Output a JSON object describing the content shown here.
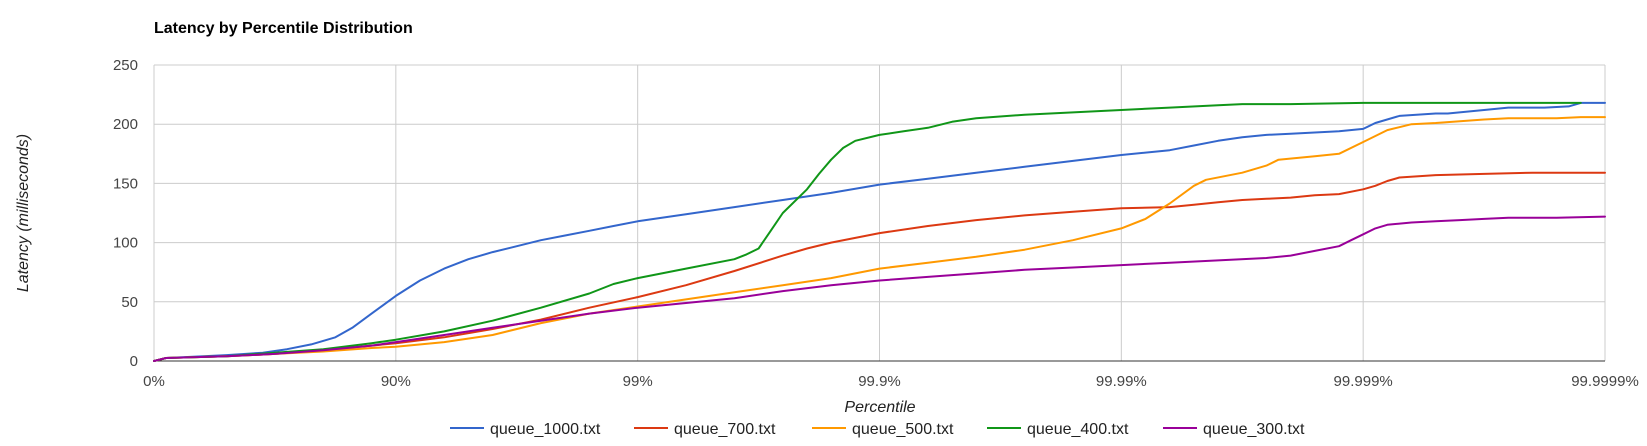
{
  "chart_data": {
    "type": "line",
    "title": "Latency by Percentile Distribution",
    "xlabel": "Percentile",
    "ylabel": "Latency (milliseconds)",
    "x_scale": "percentile-log",
    "x_ticks": [
      {
        "value": 0,
        "label": "0%"
      },
      {
        "value": 1,
        "label": "90%"
      },
      {
        "value": 2,
        "label": "99%"
      },
      {
        "value": 3,
        "label": "99.9%"
      },
      {
        "value": 4,
        "label": "99.99%"
      },
      {
        "value": 5,
        "label": "99.999%"
      },
      {
        "value": 6,
        "label": "99.9999%"
      }
    ],
    "y_ticks": [
      0,
      50,
      100,
      150,
      200,
      250
    ],
    "ylim": [
      0,
      250
    ],
    "xlim": [
      0,
      6
    ],
    "grid": true,
    "legend_position": "bottom",
    "series": [
      {
        "name": "queue_1000.txt",
        "color": "#3366cc",
        "points": [
          [
            0,
            0
          ],
          [
            0.05,
            2.5
          ],
          [
            0.15,
            3.5
          ],
          [
            0.3,
            5
          ],
          [
            0.45,
            7
          ],
          [
            0.55,
            10
          ],
          [
            0.65,
            14
          ],
          [
            0.75,
            20
          ],
          [
            0.82,
            28
          ],
          [
            0.9,
            40
          ],
          [
            1,
            55
          ],
          [
            1.1,
            68
          ],
          [
            1.2,
            78
          ],
          [
            1.3,
            86
          ],
          [
            1.4,
            92
          ],
          [
            1.5,
            97
          ],
          [
            1.6,
            102
          ],
          [
            1.7,
            106
          ],
          [
            1.8,
            110
          ],
          [
            1.9,
            114
          ],
          [
            2,
            118
          ],
          [
            2.2,
            124
          ],
          [
            2.4,
            130
          ],
          [
            2.6,
            136
          ],
          [
            2.8,
            142
          ],
          [
            3,
            149
          ],
          [
            3.2,
            154
          ],
          [
            3.4,
            159
          ],
          [
            3.6,
            164
          ],
          [
            3.8,
            169
          ],
          [
            4,
            174
          ],
          [
            4.2,
            178
          ],
          [
            4.3,
            182
          ],
          [
            4.4,
            186
          ],
          [
            4.5,
            189
          ],
          [
            4.6,
            191
          ],
          [
            4.7,
            192
          ],
          [
            4.8,
            193
          ],
          [
            4.9,
            194
          ],
          [
            5,
            196
          ],
          [
            5.05,
            201
          ],
          [
            5.15,
            207
          ],
          [
            5.3,
            209
          ],
          [
            5.35,
            209
          ],
          [
            5.5,
            212
          ],
          [
            5.6,
            214
          ],
          [
            5.75,
            214
          ],
          [
            5.85,
            215
          ],
          [
            5.9,
            218
          ],
          [
            6,
            218
          ]
        ]
      },
      {
        "name": "queue_700.txt",
        "color": "#dc3912",
        "points": [
          [
            0,
            0
          ],
          [
            0.05,
            2.5
          ],
          [
            0.3,
            4
          ],
          [
            0.5,
            6
          ],
          [
            0.7,
            9
          ],
          [
            0.9,
            13
          ],
          [
            1,
            15
          ],
          [
            1.2,
            20
          ],
          [
            1.4,
            27
          ],
          [
            1.6,
            35
          ],
          [
            1.8,
            45
          ],
          [
            2,
            54
          ],
          [
            2.2,
            64
          ],
          [
            2.4,
            76
          ],
          [
            2.6,
            89
          ],
          [
            2.7,
            95
          ],
          [
            2.8,
            100
          ],
          [
            3,
            108
          ],
          [
            3.2,
            114
          ],
          [
            3.4,
            119
          ],
          [
            3.6,
            123
          ],
          [
            3.8,
            126
          ],
          [
            4,
            129
          ],
          [
            4.2,
            130
          ],
          [
            4.3,
            132
          ],
          [
            4.4,
            134
          ],
          [
            4.5,
            136
          ],
          [
            4.6,
            137
          ],
          [
            4.7,
            138
          ],
          [
            4.8,
            140
          ],
          [
            4.9,
            141
          ],
          [
            5,
            145
          ],
          [
            5.05,
            148
          ],
          [
            5.1,
            152
          ],
          [
            5.15,
            155
          ],
          [
            5.3,
            157
          ],
          [
            5.5,
            158
          ],
          [
            5.7,
            159
          ],
          [
            6,
            159
          ]
        ]
      },
      {
        "name": "queue_500.txt",
        "color": "#ff9900",
        "points": [
          [
            0,
            0
          ],
          [
            0.05,
            2.5
          ],
          [
            0.3,
            4
          ],
          [
            0.5,
            6
          ],
          [
            0.7,
            8
          ],
          [
            0.9,
            11
          ],
          [
            1,
            12
          ],
          [
            1.2,
            16
          ],
          [
            1.4,
            22
          ],
          [
            1.6,
            32
          ],
          [
            1.8,
            40
          ],
          [
            2,
            46
          ],
          [
            2.2,
            52
          ],
          [
            2.4,
            58
          ],
          [
            2.6,
            64
          ],
          [
            2.8,
            70
          ],
          [
            3,
            78
          ],
          [
            3.2,
            83
          ],
          [
            3.4,
            88
          ],
          [
            3.6,
            94
          ],
          [
            3.8,
            102
          ],
          [
            4,
            112
          ],
          [
            4.1,
            120
          ],
          [
            4.2,
            133
          ],
          [
            4.3,
            148
          ],
          [
            4.35,
            153
          ],
          [
            4.5,
            159
          ],
          [
            4.6,
            165
          ],
          [
            4.65,
            170
          ],
          [
            4.8,
            173
          ],
          [
            4.9,
            175
          ],
          [
            5,
            185
          ],
          [
            5.1,
            195
          ],
          [
            5.2,
            200
          ],
          [
            5.3,
            201
          ],
          [
            5.5,
            204
          ],
          [
            5.6,
            205
          ],
          [
            5.8,
            205
          ],
          [
            5.9,
            206
          ],
          [
            6,
            206
          ]
        ]
      },
      {
        "name": "queue_400.txt",
        "color": "#109618",
        "points": [
          [
            0,
            0
          ],
          [
            0.05,
            2.5
          ],
          [
            0.3,
            4
          ],
          [
            0.5,
            7
          ],
          [
            0.7,
            10
          ],
          [
            0.9,
            15
          ],
          [
            1,
            18
          ],
          [
            1.2,
            25
          ],
          [
            1.4,
            34
          ],
          [
            1.6,
            45
          ],
          [
            1.8,
            57
          ],
          [
            1.9,
            65
          ],
          [
            2,
            70
          ],
          [
            2.2,
            78
          ],
          [
            2.4,
            86
          ],
          [
            2.45,
            90
          ],
          [
            2.5,
            95
          ],
          [
            2.55,
            110
          ],
          [
            2.6,
            125
          ],
          [
            2.7,
            145
          ],
          [
            2.75,
            158
          ],
          [
            2.8,
            170
          ],
          [
            2.85,
            180
          ],
          [
            2.9,
            186
          ],
          [
            3,
            191
          ],
          [
            3.1,
            194
          ],
          [
            3.2,
            197
          ],
          [
            3.3,
            202
          ],
          [
            3.4,
            205
          ],
          [
            3.6,
            208
          ],
          [
            3.8,
            210
          ],
          [
            4,
            212
          ],
          [
            4.2,
            214
          ],
          [
            4.4,
            216
          ],
          [
            4.5,
            217
          ],
          [
            4.7,
            217
          ],
          [
            5,
            218
          ],
          [
            5.5,
            218
          ],
          [
            5.9,
            218
          ]
        ]
      },
      {
        "name": "queue_300.txt",
        "color": "#990099",
        "points": [
          [
            0,
            0
          ],
          [
            0.05,
            2.5
          ],
          [
            0.3,
            4
          ],
          [
            0.5,
            6
          ],
          [
            0.7,
            9
          ],
          [
            0.9,
            13
          ],
          [
            1,
            16
          ],
          [
            1.2,
            22
          ],
          [
            1.4,
            28
          ],
          [
            1.6,
            34
          ],
          [
            1.8,
            40
          ],
          [
            2,
            45
          ],
          [
            2.2,
            49
          ],
          [
            2.4,
            53
          ],
          [
            2.6,
            59
          ],
          [
            2.8,
            64
          ],
          [
            3,
            68
          ],
          [
            3.2,
            71
          ],
          [
            3.4,
            74
          ],
          [
            3.6,
            77
          ],
          [
            3.8,
            79
          ],
          [
            4,
            81
          ],
          [
            4.2,
            83
          ],
          [
            4.4,
            85
          ],
          [
            4.6,
            87
          ],
          [
            4.7,
            89
          ],
          [
            4.8,
            93
          ],
          [
            4.9,
            97
          ],
          [
            4.95,
            102
          ],
          [
            5,
            107
          ],
          [
            5.05,
            112
          ],
          [
            5.1,
            115
          ],
          [
            5.2,
            117
          ],
          [
            5.3,
            118
          ],
          [
            5.4,
            119
          ],
          [
            5.5,
            120
          ],
          [
            5.6,
            121
          ],
          [
            5.8,
            121
          ],
          [
            6,
            122
          ]
        ]
      }
    ]
  }
}
